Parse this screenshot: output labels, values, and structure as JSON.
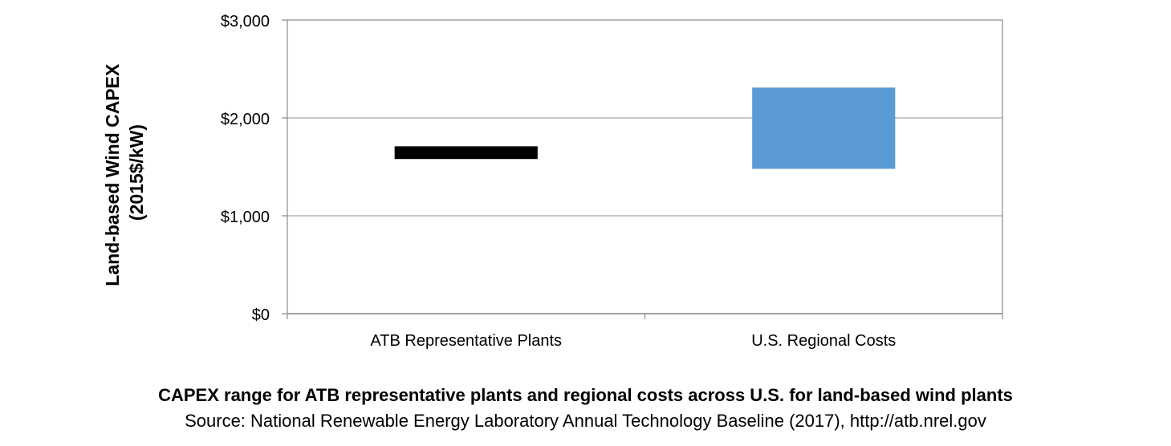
{
  "chart_data": {
    "type": "bar",
    "title": "",
    "ylabel_line1": "Land-based Wind CAPEX",
    "ylabel_line2": "(2015$/kW)",
    "xlabel": "",
    "ylim": [
      0,
      3000
    ],
    "yticks": [
      0,
      1000,
      2000,
      3000
    ],
    "ytick_labels": [
      "$0",
      "$1,000",
      "$2,000",
      "$3,000"
    ],
    "grid": true,
    "legend": "none",
    "categories": [
      "ATB Representative Plants",
      "U.S. Regional Costs"
    ],
    "ranges": [
      {
        "category": "ATB Representative Plants",
        "low": 1580,
        "high": 1710,
        "color": "#000000"
      },
      {
        "category": "U.S. Regional Costs",
        "low": 1480,
        "high": 2310,
        "color": "#5b9bd5"
      }
    ]
  },
  "caption": {
    "title": "CAPEX range for ATB representative plants and regional costs across U.S. for land-based wind plants",
    "source": "Source: National Renewable Energy Laboratory Annual Technology Baseline (2017), http://atb.nrel.gov"
  }
}
